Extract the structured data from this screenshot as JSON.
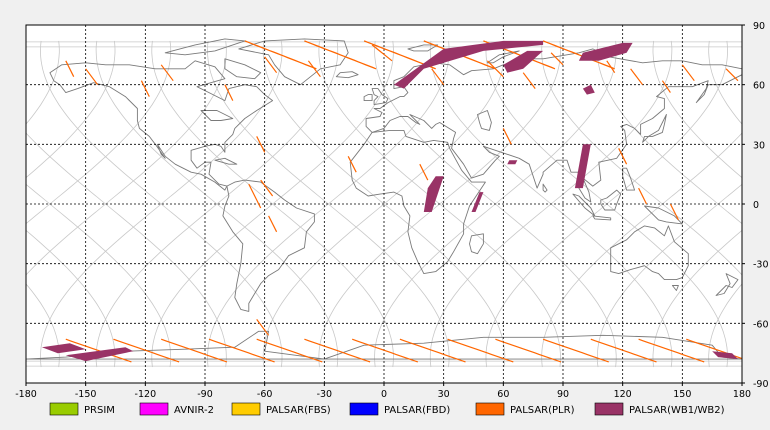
{
  "map": {
    "projection": "equirectangular",
    "lon_range": [
      -180,
      180
    ],
    "lat_range": [
      -90,
      90
    ],
    "x_ticks": [
      "-180",
      "-150",
      "-120",
      "-90",
      "-60",
      "-30",
      "0",
      "30",
      "60",
      "90",
      "120",
      "150",
      "180"
    ],
    "y_ticks": [
      "90",
      "60",
      "30",
      "0",
      "-30",
      "-60",
      "-90"
    ],
    "grid": true,
    "background_color": "#ffffff",
    "coastline_color": "#7a7a7a",
    "orbit_track_color": "#c8c8c8"
  },
  "legend": [
    {
      "label": "PRSIM",
      "color": "#99cc00"
    },
    {
      "label": "AVNIR-2",
      "color": "#ff00ff"
    },
    {
      "label": "PALSAR(FBS)",
      "color": "#ffcc00"
    },
    {
      "label": "PALSAR(FBD)",
      "color": "#0000ff"
    },
    {
      "label": "PALSAR(PLR)",
      "color": "#ff6600"
    },
    {
      "label": "PALSAR(WB1/WB2)",
      "color": "#993366"
    }
  ]
}
